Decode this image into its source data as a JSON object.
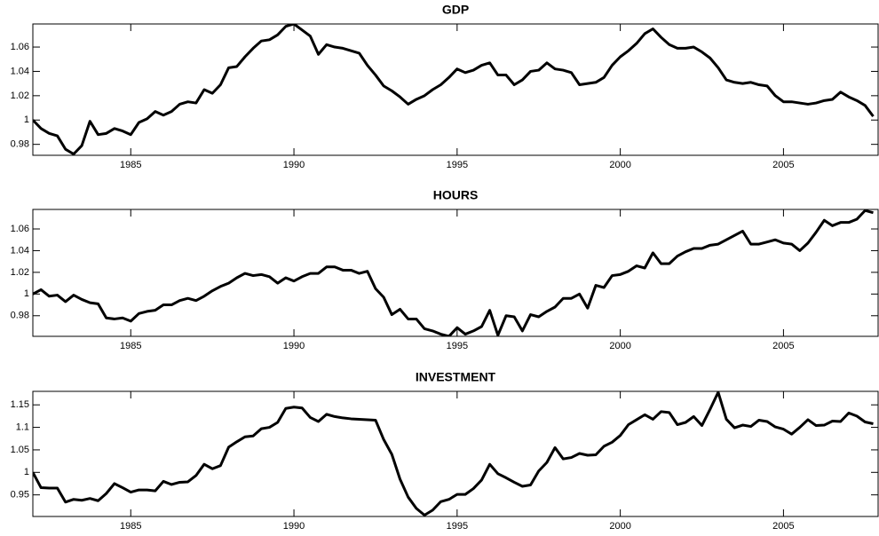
{
  "chart_data": [
    {
      "type": "line",
      "title": "GDP",
      "x": [
        1982,
        1982.25,
        1982.5,
        1982.75,
        1983,
        1983.25,
        1983.5,
        1983.75,
        1984,
        1984.25,
        1984.5,
        1984.75,
        1985,
        1985.25,
        1985.5,
        1985.75,
        1986,
        1986.25,
        1986.5,
        1986.75,
        1987,
        1987.25,
        1987.5,
        1987.75,
        1988,
        1988.25,
        1988.5,
        1988.75,
        1989,
        1989.25,
        1989.5,
        1989.75,
        1990,
        1990.25,
        1990.5,
        1990.75,
        1991,
        1991.25,
        1991.5,
        1991.75,
        1992,
        1992.25,
        1992.5,
        1992.75,
        1993,
        1993.25,
        1993.5,
        1993.75,
        1994,
        1994.25,
        1994.5,
        1994.75,
        1995,
        1995.25,
        1995.5,
        1995.75,
        1996,
        1996.25,
        1996.5,
        1996.75,
        1997,
        1997.25,
        1997.5,
        1997.75,
        1998,
        1998.25,
        1998.5,
        1998.75,
        1999,
        1999.25,
        1999.5,
        1999.75,
        2000,
        2000.25,
        2000.5,
        2000.75,
        2001,
        2001.25,
        2001.5,
        2001.75,
        2002,
        2002.25,
        2002.5,
        2002.75,
        2003,
        2003.25,
        2003.5,
        2003.75,
        2004,
        2004.25,
        2004.5,
        2004.75,
        2005,
        2005.25,
        2005.5,
        2005.75,
        2006,
        2006.25,
        2006.5,
        2006.75,
        2007,
        2007.25,
        2007.5,
        2007.75
      ],
      "series": [
        {
          "color": "#000000",
          "values": [
            1.0,
            0.993,
            0.989,
            0.987,
            0.976,
            0.972,
            0.979,
            0.999,
            0.988,
            0.989,
            0.993,
            0.991,
            0.988,
            0.998,
            1.001,
            1.007,
            1.004,
            1.007,
            1.013,
            1.015,
            1.014,
            1.025,
            1.022,
            1.029,
            1.043,
            1.044,
            1.052,
            1.059,
            1.065,
            1.066,
            1.07,
            1.077,
            1.079,
            1.074,
            1.069,
            1.054,
            1.062,
            1.06,
            1.059,
            1.057,
            1.055,
            1.045,
            1.037,
            1.028,
            1.024,
            1.019,
            1.013,
            1.017,
            1.02,
            1.025,
            1.029,
            1.035,
            1.042,
            1.039,
            1.041,
            1.045,
            1.047,
            1.037,
            1.037,
            1.029,
            1.033,
            1.04,
            1.041,
            1.047,
            1.042,
            1.041,
            1.039,
            1.029,
            1.03,
            1.031,
            1.035,
            1.045,
            1.052,
            1.057,
            1.063,
            1.071,
            1.075,
            1.068,
            1.062,
            1.059,
            1.059,
            1.06,
            1.056,
            1.051,
            1.043,
            1.033,
            1.031,
            1.03,
            1.031,
            1.029,
            1.028,
            1.02,
            1.015,
            1.015,
            1.014,
            1.013,
            1.014,
            1.016,
            1.017,
            1.023,
            1.019,
            1.016,
            1.012,
            1.003
          ]
        }
      ],
      "xlim": [
        1982,
        2007.9
      ],
      "ylim": [
        0.971,
        1.079
      ],
      "xticks": [
        1985,
        1990,
        1995,
        2000,
        2005
      ],
      "yticks": [
        0.98,
        1,
        1.02,
        1.04,
        1.06
      ]
    },
    {
      "type": "line",
      "title": "HOURS",
      "x": [
        1982,
        1982.25,
        1982.5,
        1982.75,
        1983,
        1983.25,
        1983.5,
        1983.75,
        1984,
        1984.25,
        1984.5,
        1984.75,
        1985,
        1985.25,
        1985.5,
        1985.75,
        1986,
        1986.25,
        1986.5,
        1986.75,
        1987,
        1987.25,
        1987.5,
        1987.75,
        1988,
        1988.25,
        1988.5,
        1988.75,
        1989,
        1989.25,
        1989.5,
        1989.75,
        1990,
        1990.25,
        1990.5,
        1990.75,
        1991,
        1991.25,
        1991.5,
        1991.75,
        1992,
        1992.25,
        1992.5,
        1992.75,
        1993,
        1993.25,
        1993.5,
        1993.75,
        1994,
        1994.25,
        1994.5,
        1994.75,
        1995,
        1995.25,
        1995.5,
        1995.75,
        1996,
        1996.25,
        1996.5,
        1996.75,
        1997,
        1997.25,
        1997.5,
        1997.75,
        1998,
        1998.25,
        1998.5,
        1998.75,
        1999,
        1999.25,
        1999.5,
        1999.75,
        2000,
        2000.25,
        2000.5,
        2000.75,
        2001,
        2001.25,
        2001.5,
        2001.75,
        2002,
        2002.25,
        2002.5,
        2002.75,
        2003,
        2003.25,
        2003.5,
        2003.75,
        2004,
        2004.25,
        2004.5,
        2004.75,
        2005,
        2005.25,
        2005.5,
        2005.75,
        2006,
        2006.25,
        2006.5,
        2006.75,
        2007,
        2007.25,
        2007.5,
        2007.75
      ],
      "series": [
        {
          "color": "#000000",
          "values": [
            1.0,
            1.004,
            0.998,
            0.999,
            0.993,
            0.999,
            0.995,
            0.992,
            0.991,
            0.978,
            0.977,
            0.978,
            0.975,
            0.982,
            0.984,
            0.985,
            0.99,
            0.99,
            0.994,
            0.996,
            0.994,
            0.998,
            1.003,
            1.007,
            1.01,
            1.015,
            1.019,
            1.017,
            1.018,
            1.016,
            1.01,
            1.015,
            1.012,
            1.016,
            1.019,
            1.019,
            1.025,
            1.025,
            1.022,
            1.022,
            1.019,
            1.021,
            1.005,
            0.997,
            0.981,
            0.986,
            0.977,
            0.977,
            0.968,
            0.966,
            0.963,
            0.961,
            0.969,
            0.963,
            0.966,
            0.97,
            0.985,
            0.962,
            0.98,
            0.979,
            0.966,
            0.981,
            0.979,
            0.984,
            0.988,
            0.996,
            0.996,
            1.0,
            0.987,
            1.008,
            1.006,
            1.017,
            1.018,
            1.021,
            1.026,
            1.024,
            1.038,
            1.028,
            1.028,
            1.035,
            1.039,
            1.042,
            1.042,
            1.045,
            1.046,
            1.05,
            1.054,
            1.058,
            1.046,
            1.046,
            1.048,
            1.05,
            1.047,
            1.046,
            1.04,
            1.047,
            1.057,
            1.068,
            1.063,
            1.066,
            1.066,
            1.069,
            1.077,
            1.075
          ]
        }
      ],
      "xlim": [
        1982,
        2007.9
      ],
      "ylim": [
        0.961,
        1.078
      ],
      "xticks": [
        1985,
        1990,
        1995,
        2000,
        2005
      ],
      "yticks": [
        0.98,
        1,
        1.02,
        1.04,
        1.06
      ]
    },
    {
      "type": "line",
      "title": "INVESTMENT",
      "x": [
        1982,
        1982.25,
        1982.5,
        1982.75,
        1983,
        1983.25,
        1983.5,
        1983.75,
        1984,
        1984.25,
        1984.5,
        1984.75,
        1985,
        1985.25,
        1985.5,
        1985.75,
        1986,
        1986.25,
        1986.5,
        1986.75,
        1987,
        1987.25,
        1987.5,
        1987.75,
        1988,
        1988.25,
        1988.5,
        1988.75,
        1989,
        1989.25,
        1989.5,
        1989.75,
        1990,
        1990.25,
        1990.5,
        1990.75,
        1991,
        1991.25,
        1991.5,
        1991.75,
        1992,
        1992.25,
        1992.5,
        1992.75,
        1993,
        1993.25,
        1993.5,
        1993.75,
        1994,
        1994.25,
        1994.5,
        1994.75,
        1995,
        1995.25,
        1995.5,
        1995.75,
        1996,
        1996.25,
        1996.5,
        1996.75,
        1997,
        1997.25,
        1997.5,
        1997.75,
        1998,
        1998.25,
        1998.5,
        1998.75,
        1999,
        1999.25,
        1999.5,
        1999.75,
        2000,
        2000.25,
        2000.5,
        2000.75,
        2001,
        2001.25,
        2001.5,
        2001.75,
        2002,
        2002.25,
        2002.5,
        2002.75,
        2003,
        2003.25,
        2003.5,
        2003.75,
        2004,
        2004.25,
        2004.5,
        2004.75,
        2005,
        2005.25,
        2005.5,
        2005.75,
        2006,
        2006.25,
        2006.5,
        2006.75,
        2007,
        2007.25,
        2007.5,
        2007.75
      ],
      "series": [
        {
          "color": "#000000",
          "values": [
            1.0,
            0.966,
            0.965,
            0.965,
            0.934,
            0.94,
            0.938,
            0.942,
            0.937,
            0.953,
            0.975,
            0.966,
            0.956,
            0.961,
            0.961,
            0.959,
            0.98,
            0.973,
            0.978,
            0.979,
            0.993,
            1.018,
            1.008,
            1.015,
            1.056,
            1.068,
            1.079,
            1.081,
            1.097,
            1.1,
            1.111,
            1.142,
            1.145,
            1.143,
            1.122,
            1.113,
            1.129,
            1.124,
            1.121,
            1.119,
            1.118,
            1.117,
            1.116,
            1.073,
            1.04,
            0.985,
            0.945,
            0.92,
            0.905,
            0.916,
            0.935,
            0.94,
            0.951,
            0.951,
            0.964,
            0.983,
            1.018,
            0.997,
            0.988,
            0.978,
            0.969,
            0.972,
            1.003,
            1.022,
            1.055,
            1.03,
            1.033,
            1.042,
            1.038,
            1.039,
            1.058,
            1.067,
            1.082,
            1.106,
            1.117,
            1.128,
            1.118,
            1.135,
            1.133,
            1.106,
            1.111,
            1.124,
            1.104,
            1.14,
            1.178,
            1.118,
            1.099,
            1.105,
            1.102,
            1.116,
            1.113,
            1.101,
            1.096,
            1.085,
            1.1,
            1.117,
            1.104,
            1.105,
            1.114,
            1.113,
            1.132,
            1.125,
            1.112,
            1.108
          ]
        }
      ],
      "xlim": [
        1982,
        2007.9
      ],
      "ylim": [
        0.902,
        1.18
      ],
      "xticks": [
        1985,
        1990,
        1995,
        2000,
        2005
      ],
      "yticks": [
        0.95,
        1,
        1.05,
        1.1,
        1.15
      ]
    }
  ]
}
